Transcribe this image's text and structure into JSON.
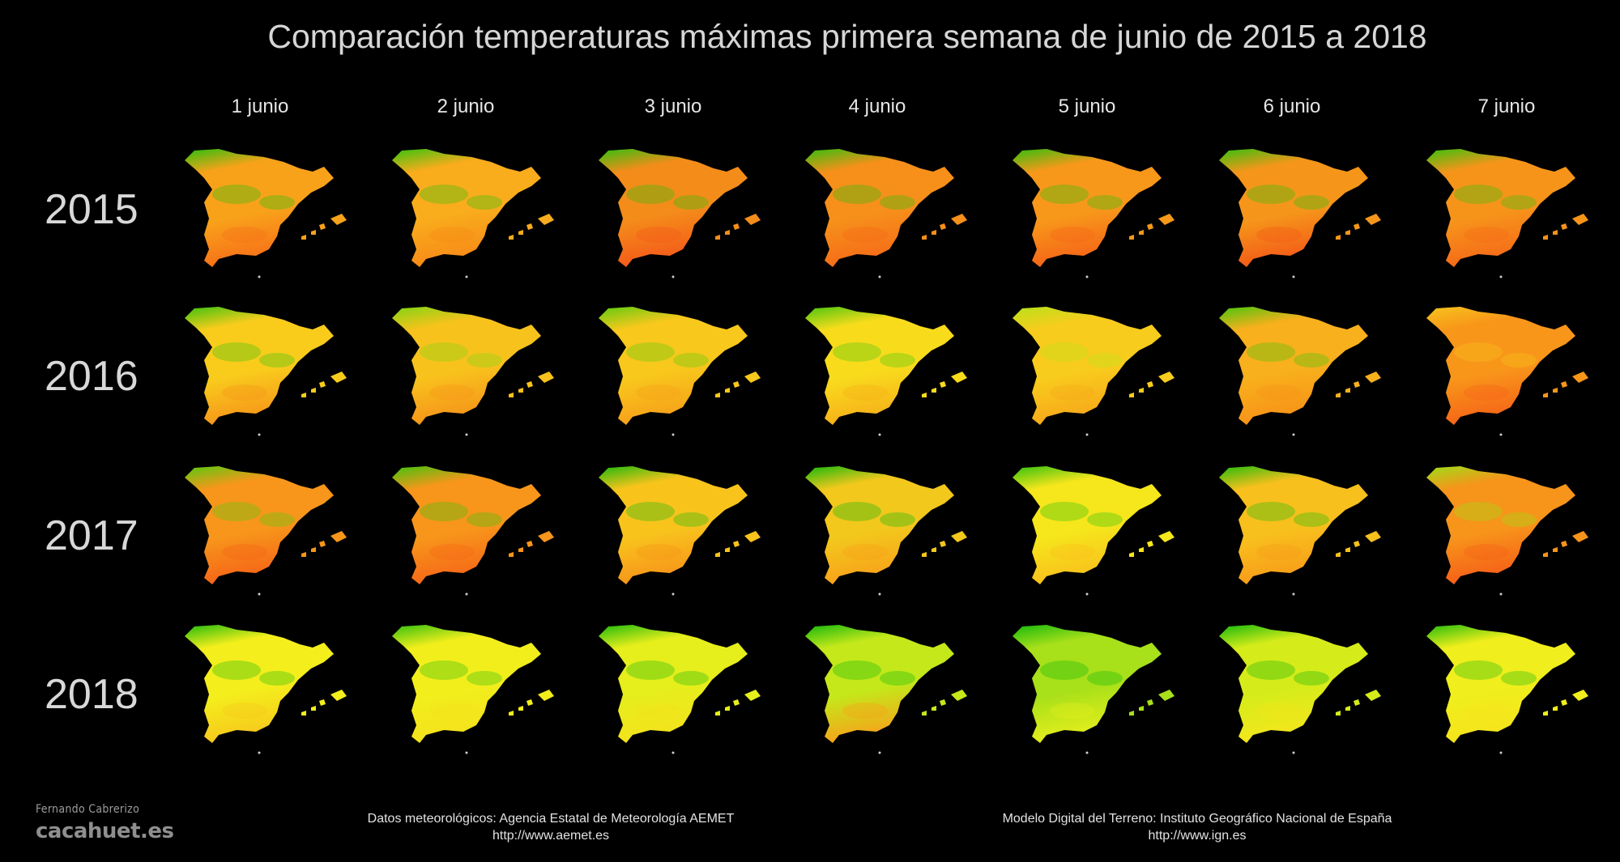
{
  "title": "Comparación temperaturas máximas primera semana de junio de 2015 a 2018",
  "days": [
    "1 junio",
    "2 junio",
    "3 junio",
    "4 junio",
    "5 junio",
    "6 junio",
    "7 junio"
  ],
  "years": [
    "2015",
    "2016",
    "2017",
    "2018"
  ],
  "map_colors": {
    "green": "#14b80c",
    "yellow_green": "#a8e01c",
    "yellow": "#f3f21a",
    "orange": "#fb9d12",
    "red_orange": "#f7641a"
  },
  "maps": [
    [
      {
        "base": "#f8a21a",
        "south": "#f77018",
        "north": "#28c00e"
      },
      {
        "base": "#f9ac1c",
        "south": "#f78a18",
        "north": "#32c40e"
      },
      {
        "base": "#f48c1a",
        "south": "#f45a1a",
        "north": "#2ec10e"
      },
      {
        "base": "#f6901a",
        "south": "#f56c18",
        "north": "#30c00e"
      },
      {
        "base": "#f7981a",
        "south": "#f66418",
        "north": "#2ec00e"
      },
      {
        "base": "#f5961a",
        "south": "#f45a18",
        "north": "#32c10e"
      },
      {
        "base": "#f6941a",
        "south": "#f56a18",
        "north": "#36c20e"
      }
    ],
    [
      {
        "base": "#f9cc1c",
        "south": "#f6961a",
        "north": "#38c30e"
      },
      {
        "base": "#f8c21c",
        "south": "#f6941a",
        "north": "#7ed612"
      },
      {
        "base": "#f8c81c",
        "south": "#f7a01a",
        "north": "#5ccc10"
      },
      {
        "base": "#f8dc1c",
        "south": "#f7b01a",
        "north": "#48c60e"
      },
      {
        "base": "#f8cc1c",
        "south": "#f7a81a",
        "north": "#b8e21a"
      },
      {
        "base": "#f8b01c",
        "south": "#f79218",
        "north": "#46c60e"
      },
      {
        "base": "#f8961a",
        "south": "#f66418",
        "north": "#f6c41c"
      }
    ],
    [
      {
        "base": "#f7961a",
        "south": "#f56418",
        "north": "#56ca10"
      },
      {
        "base": "#f7961a",
        "south": "#f66818",
        "north": "#3ec40e"
      },
      {
        "base": "#f8c41c",
        "south": "#f7941a",
        "north": "#1cb90c"
      },
      {
        "base": "#f2c81c",
        "south": "#f8a21a",
        "north": "#14b80c"
      },
      {
        "base": "#f6e61c",
        "south": "#f8c01c",
        "north": "#30c10e"
      },
      {
        "base": "#f8c01c",
        "south": "#f79c1a",
        "north": "#22bc0c"
      },
      {
        "base": "#f7941a",
        "south": "#f65e18",
        "north": "#9cde18"
      }
    ],
    [
      {
        "base": "#f4ee1c",
        "south": "#f7c81c",
        "north": "#20bc0c"
      },
      {
        "base": "#f2ee1c",
        "south": "#f4e21c",
        "north": "#30c00e"
      },
      {
        "base": "#e6ee1c",
        "south": "#f4e21c",
        "north": "#1cba0c"
      },
      {
        "base": "#c4e81a",
        "south": "#f8a21a",
        "north": "#14b80c"
      },
      {
        "base": "#a8e01a",
        "south": "#e6ee1c",
        "north": "#14b80c"
      },
      {
        "base": "#d6ec1a",
        "south": "#f4e61c",
        "north": "#14b80c"
      },
      {
        "base": "#f0ee1c",
        "south": "#f6e41c",
        "north": "#22bc0c"
      }
    ]
  ],
  "sources": [
    {
      "line1": "Datos meteorológicos: Agencia Estatal de Meteorología AEMET",
      "line2": "http://www.aemet.es"
    },
    {
      "line1": "Modelo Digital del Terreno: Instituto Geográfico Nacional de España",
      "line2": "http://www.ign.es"
    }
  ],
  "credit": {
    "author": "Fernando Cabrerizo",
    "site": "cacahuet.es"
  }
}
